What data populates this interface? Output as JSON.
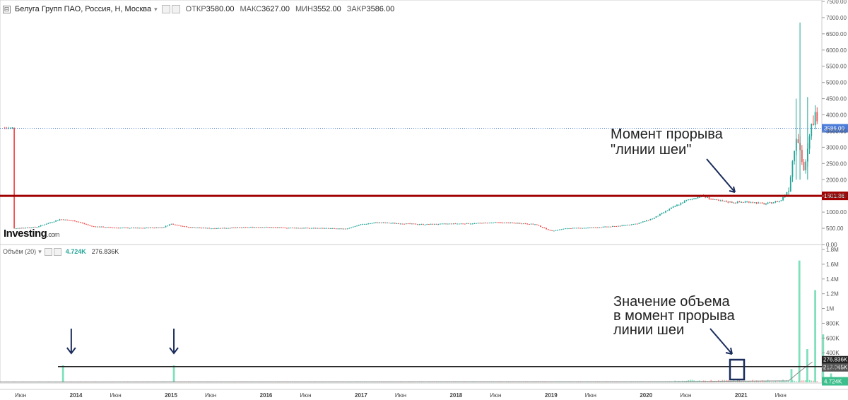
{
  "header": {
    "collapse_icon": "⊟",
    "title": "Белуга Групп ПАО, Россия, Н, Москва",
    "dropdown": "▾",
    "open_label": "ОТКР",
    "open_value": "3580.00",
    "high_label": "МАКС",
    "high_value": "3627.00",
    "low_label": "МИН",
    "low_value": "3552.00",
    "close_label": "ЗАКР",
    "close_value": "3586.00"
  },
  "logo": {
    "main": "Investing",
    "suffix": ".com"
  },
  "volume_header": {
    "label": "Объём (20)",
    "dropdown": "▾",
    "current": "4.724K",
    "ma": "276.836K"
  },
  "colors": {
    "up": "#26a69a",
    "down": "#ef5350",
    "vol_up": "#7fe0bc",
    "vol_down": "#f5a4a2",
    "support": "#a00000",
    "annot": "#1a2c5b"
  },
  "chart_data": [
    {
      "type": "candlestick",
      "title": "Белуга Групп ПАО, Россия, Н, Москва",
      "y_ticks": [
        "0.00",
        "500.00",
        "1000.00",
        "1500.00",
        "2000.00",
        "2500.00",
        "3000.00",
        "3500.00",
        "4000.00",
        "4500.00",
        "5000.00",
        "5500.00",
        "6000.00",
        "6500.00",
        "7000.00",
        "7500.00"
      ],
      "ylim": [
        0,
        7500
      ],
      "price_line": {
        "value": 3586,
        "label": "3586.00"
      },
      "support_line": {
        "value": 1501.36,
        "label": "1501.36"
      },
      "x_ticks": [
        "Июн",
        "2014",
        "Июн",
        "2015",
        "Июн",
        "2016",
        "Июн",
        "2017",
        "Июн",
        "2018",
        "Июн",
        "2019",
        "Июн",
        "2020",
        "Июн",
        "2021",
        "Июн"
      ],
      "price_path": [
        [
          "2013-05",
          500
        ],
        [
          "2013-08",
          540
        ],
        [
          "2013-10",
          700
        ],
        [
          "2013-11",
          780
        ],
        [
          "2014-01",
          720
        ],
        [
          "2014-03",
          560
        ],
        [
          "2014-06",
          520
        ],
        [
          "2014-09",
          510
        ],
        [
          "2014-12",
          530
        ],
        [
          "2015-01",
          640
        ],
        [
          "2015-03",
          540
        ],
        [
          "2015-06",
          500
        ],
        [
          "2015-09",
          520
        ],
        [
          "2015-12",
          540
        ],
        [
          "2016-03",
          520
        ],
        [
          "2016-06",
          510
        ],
        [
          "2016-09",
          500
        ],
        [
          "2016-11",
          480
        ],
        [
          "2017-01",
          620
        ],
        [
          "2017-03",
          680
        ],
        [
          "2017-06",
          650
        ],
        [
          "2017-09",
          620
        ],
        [
          "2017-12",
          640
        ],
        [
          "2018-03",
          650
        ],
        [
          "2018-06",
          680
        ],
        [
          "2018-09",
          660
        ],
        [
          "2018-11",
          620
        ],
        [
          "2019-01",
          420
        ],
        [
          "2019-03",
          500
        ],
        [
          "2019-06",
          520
        ],
        [
          "2019-09",
          560
        ],
        [
          "2019-12",
          650
        ],
        [
          "2020-02",
          820
        ],
        [
          "2020-04",
          1100
        ],
        [
          "2020-06",
          1350
        ],
        [
          "2020-08",
          1500
        ],
        [
          "2020-10",
          1350
        ],
        [
          "2020-12",
          1300
        ],
        [
          "2021-02",
          1320
        ],
        [
          "2021-04",
          1250
        ],
        [
          "2021-06",
          1350
        ],
        [
          "2021-07",
          1700
        ],
        [
          "2021-08",
          3500
        ],
        [
          "2021-09",
          2200
        ],
        [
          "2021-10",
          3800
        ],
        [
          "2021-11",
          4200
        ],
        [
          "2021-12",
          3586
        ]
      ],
      "annotation": {
        "line1": "Момент прорыва",
        "line2": "\"линии шеи\""
      }
    },
    {
      "type": "bar",
      "title": "Объём (20)",
      "y_ticks": [
        "200K",
        "400K",
        "600K",
        "800K",
        "1M",
        "1.2M",
        "1.4M",
        "1.6M",
        "1.8M"
      ],
      "ylim": [
        0,
        1800000
      ],
      "current_volume": {
        "value": 4724,
        "label": "4.724K"
      },
      "ma_value": {
        "value": 276836,
        "label": "276.836K"
      },
      "level_value": {
        "value": 213065,
        "label": "213.065K"
      },
      "spikes": [
        [
          "2013-11",
          230000
        ],
        [
          "2015-01",
          230000
        ],
        [
          "2021-07",
          180000
        ],
        [
          "2021-08",
          1650000
        ],
        [
          "2021-09",
          450000
        ],
        [
          "2021-10",
          1250000
        ],
        [
          "2021-11",
          650000
        ],
        [
          "2021-12",
          120000
        ]
      ],
      "annotation": {
        "line1": "Значение объема",
        "line2": "в момент прорыва",
        "line3": "линии шеи"
      }
    }
  ]
}
